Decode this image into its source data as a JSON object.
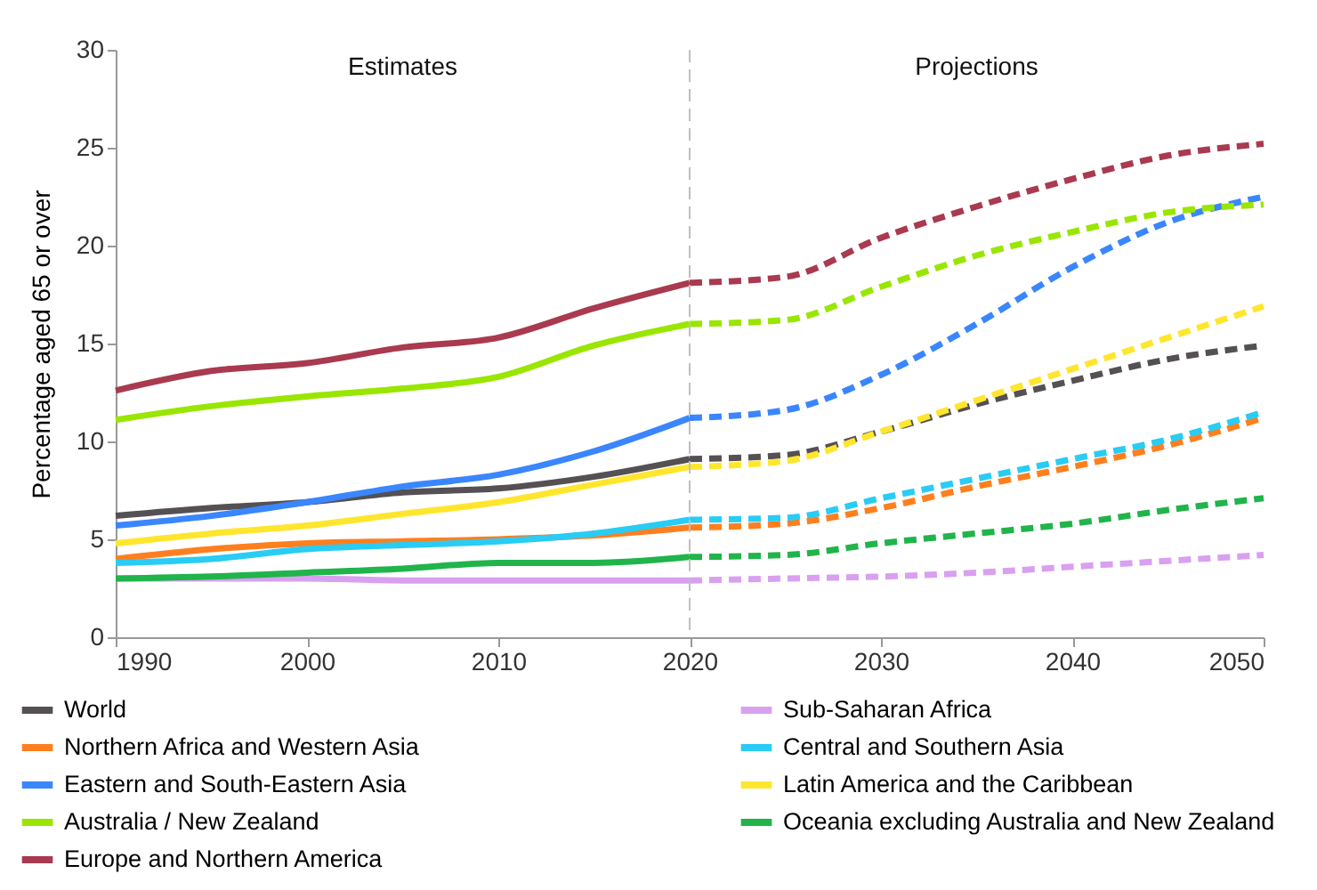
{
  "chart_data": {
    "type": "line",
    "ylabel": "Percentage aged 65 or over",
    "xlim": [
      1990,
      2050
    ],
    "xticks": [
      1990,
      2000,
      2010,
      2020,
      2030,
      2040,
      2050
    ],
    "ylim": [
      0,
      30
    ],
    "yticks": [
      0,
      5,
      10,
      15,
      20,
      25,
      30
    ],
    "grid": false,
    "legend": "bottom",
    "marker": "none",
    "annotations": [
      "Estimates",
      "Projections"
    ],
    "ref_lines": [
      {
        "axis": "x",
        "value": 2020,
        "color": "#bfbfbf",
        "line_style": "dashed"
      }
    ],
    "series": [
      {
        "name": "World",
        "color": "#545054",
        "line_style": "solid",
        "x": [
          1990,
          1995,
          2000,
          2005,
          2010,
          2015,
          2020
        ],
        "values": [
          6.2,
          6.6,
          6.9,
          7.4,
          7.6,
          8.2,
          9.1
        ]
      },
      {
        "name": "Northern Africa and Western Asia",
        "color": "#ff7f1e",
        "line_style": "solid",
        "x": [
          1990,
          1995,
          2000,
          2005,
          2010,
          2015,
          2020
        ],
        "values": [
          4.0,
          4.5,
          4.8,
          4.9,
          5.0,
          5.2,
          5.6
        ]
      },
      {
        "name": "Eastern and South-Eastern Asia",
        "color": "#3a86ff",
        "line_style": "solid",
        "x": [
          1990,
          1995,
          2000,
          2005,
          2010,
          2015,
          2020
        ],
        "values": [
          5.7,
          6.2,
          6.9,
          7.7,
          8.3,
          9.5,
          11.2
        ]
      },
      {
        "name": "Australia / New Zealand",
        "color": "#99e600",
        "line_style": "solid",
        "x": [
          1990,
          1995,
          2000,
          2005,
          2010,
          2015,
          2020
        ],
        "values": [
          11.1,
          11.8,
          12.3,
          12.7,
          13.3,
          14.9,
          16.0
        ]
      },
      {
        "name": "Europe and Northern America",
        "color": "#a93a50",
        "line_style": "solid",
        "x": [
          1990,
          1995,
          2000,
          2005,
          2010,
          2015,
          2020
        ],
        "values": [
          12.6,
          13.6,
          14.0,
          14.8,
          15.3,
          16.8,
          18.1
        ]
      },
      {
        "name": "Sub-Saharan Africa",
        "color": "#d9a0f0",
        "line_style": "solid",
        "x": [
          1990,
          1995,
          2000,
          2005,
          2010,
          2015,
          2020
        ],
        "values": [
          3.0,
          3.0,
          3.0,
          2.9,
          2.9,
          2.9,
          2.9
        ]
      },
      {
        "name": "Central and Southern Asia",
        "color": "#29ccf5",
        "line_style": "solid",
        "x": [
          1990,
          1995,
          2000,
          2005,
          2010,
          2015,
          2020
        ],
        "values": [
          3.8,
          4.0,
          4.5,
          4.7,
          4.9,
          5.3,
          6.0
        ]
      },
      {
        "name": "Latin America and the Caribbean",
        "color": "#ffe62e",
        "line_style": "solid",
        "x": [
          1990,
          1995,
          2000,
          2005,
          2010,
          2015,
          2020
        ],
        "values": [
          4.8,
          5.3,
          5.7,
          6.3,
          6.9,
          7.8,
          8.7
        ]
      },
      {
        "name": "Oceania excluding Australia and New Zealand",
        "color": "#20b44a",
        "line_style": "solid",
        "x": [
          1990,
          1995,
          2000,
          2005,
          2010,
          2015,
          2020
        ],
        "values": [
          3.0,
          3.1,
          3.3,
          3.5,
          3.8,
          3.8,
          4.1
        ]
      },
      {
        "color": "#545054",
        "line_style": "dashed",
        "x": [
          2020,
          2025,
          2030,
          2035,
          2040,
          2045,
          2050
        ],
        "values": [
          9.1,
          9.3,
          10.5,
          11.9,
          13.1,
          14.2,
          14.9
        ]
      },
      {
        "color": "#ff7f1e",
        "line_style": "dashed",
        "x": [
          2020,
          2025,
          2030,
          2035,
          2040,
          2045,
          2050
        ],
        "values": [
          5.6,
          5.8,
          6.6,
          7.7,
          8.7,
          9.8,
          11.2
        ]
      },
      {
        "color": "#3a86ff",
        "line_style": "dashed",
        "x": [
          2020,
          2025,
          2030,
          2035,
          2040,
          2045,
          2050
        ],
        "values": [
          11.2,
          11.6,
          13.4,
          16.0,
          18.9,
          21.2,
          22.5
        ]
      },
      {
        "color": "#99e600",
        "line_style": "dashed",
        "x": [
          2020,
          2025,
          2030,
          2035,
          2040,
          2045,
          2050
        ],
        "values": [
          16.0,
          16.2,
          17.9,
          19.5,
          20.7,
          21.7,
          22.1
        ]
      },
      {
        "color": "#a93a50",
        "line_style": "dashed",
        "x": [
          2020,
          2025,
          2030,
          2035,
          2040,
          2045,
          2050
        ],
        "values": [
          18.1,
          18.4,
          20.4,
          22.0,
          23.4,
          24.6,
          25.2
        ]
      },
      {
        "color": "#d9a0f0",
        "line_style": "dashed",
        "x": [
          2020,
          2025,
          2030,
          2035,
          2040,
          2045,
          2050
        ],
        "values": [
          2.9,
          3.0,
          3.1,
          3.3,
          3.6,
          3.9,
          4.2
        ]
      },
      {
        "color": "#29ccf5",
        "line_style": "dashed",
        "x": [
          2020,
          2025,
          2030,
          2035,
          2040,
          2045,
          2050
        ],
        "values": [
          6.0,
          6.1,
          7.1,
          8.1,
          9.1,
          10.1,
          11.5
        ]
      },
      {
        "color": "#ffe62e",
        "line_style": "dashed",
        "x": [
          2020,
          2025,
          2030,
          2035,
          2040,
          2045,
          2050
        ],
        "values": [
          8.7,
          9.0,
          10.5,
          12.1,
          13.7,
          15.3,
          16.9
        ]
      },
      {
        "color": "#20b44a",
        "line_style": "dashed",
        "x": [
          2020,
          2025,
          2030,
          2035,
          2040,
          2045,
          2050
        ],
        "values": [
          4.1,
          4.2,
          4.8,
          5.3,
          5.8,
          6.5,
          7.1
        ]
      }
    ]
  }
}
